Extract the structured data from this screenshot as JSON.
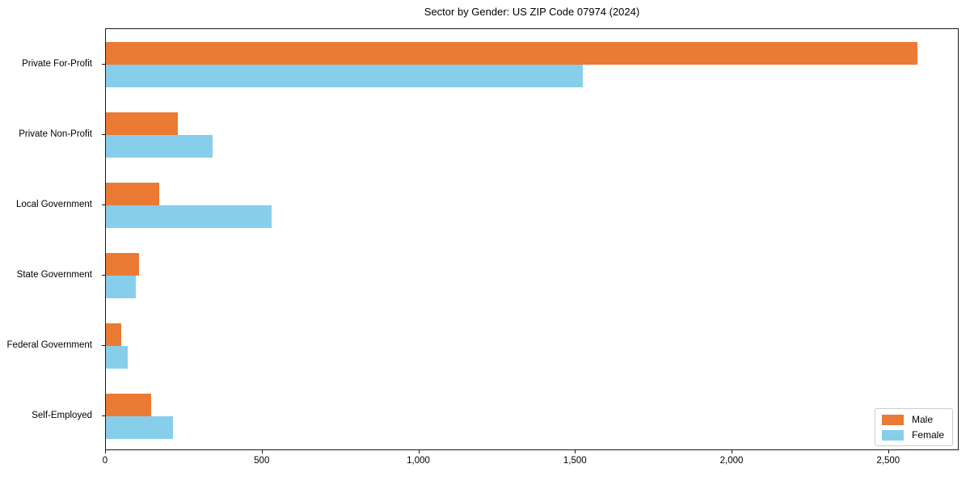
{
  "title": "Sector by Gender: US ZIP Code 07974 (2024)",
  "colors": {
    "male": "#EB7A35",
    "female": "#87CEEB",
    "spine": "#1a1a1a",
    "background": "#ffffff",
    "legend_border": "#cccccc"
  },
  "chart_data": {
    "type": "bar",
    "orientation": "horizontal",
    "title": "Sector by Gender: US ZIP Code 07974 (2024)",
    "categories": [
      "Private For-Profit",
      "Private Non-Profit",
      "Local Government",
      "State Government",
      "Federal Government",
      "Self-Employed"
    ],
    "series": [
      {
        "name": "Male",
        "color": "#EB7A35",
        "values": [
          2595,
          230,
          170,
          105,
          50,
          145
        ]
      },
      {
        "name": "Female",
        "color": "#87CEEB",
        "values": [
          1525,
          340,
          530,
          95,
          70,
          215
        ]
      }
    ],
    "xlabel": "",
    "ylabel": "",
    "xlim": [
      0,
      2725
    ],
    "xticks": [
      0,
      500,
      1000,
      1500,
      2000,
      2500
    ],
    "xtick_labels": [
      "0",
      "500",
      "1,000",
      "1,500",
      "2,000",
      "2,500"
    ],
    "grid": false,
    "legend_position": "lower right",
    "bar_order_in_group": [
      "Male",
      "Female"
    ]
  }
}
